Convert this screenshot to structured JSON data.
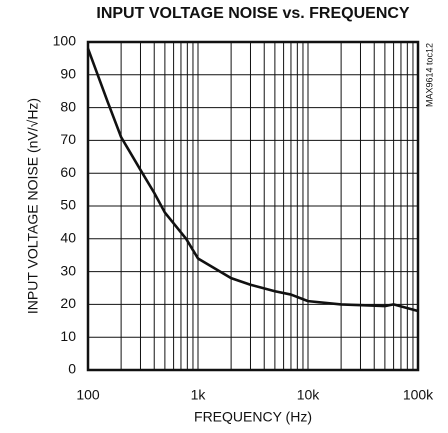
{
  "chart_data": {
    "type": "line",
    "title": "INPUT VOLTAGE NOISE vs. FREQUENCY",
    "x_label": "FREQUENCY (Hz)",
    "y_label": "INPUT VOLTAGE NOISE (nV/√Hz)",
    "annotation": "MAX9614 toc12",
    "x": [
      100,
      150,
      200,
      300,
      400,
      500,
      780,
      1000,
      2000,
      3000,
      5000,
      7000,
      10000,
      20000,
      50000,
      60000,
      100000
    ],
    "series": [
      {
        "name": "noise",
        "color": "#111111",
        "values": [
          98,
          82,
          71,
          61,
          54,
          48,
          40,
          34,
          28,
          26,
          24,
          23,
          21,
          20,
          19.5,
          20,
          18
        ]
      }
    ],
    "xscale": "log",
    "xlim": [
      100,
      100000
    ],
    "xticks": [
      100,
      {
        "value": 1000,
        "label": "1k"
      },
      {
        "value": 10000,
        "label": "10k"
      },
      {
        "value": 100000,
        "label": "100k"
      }
    ],
    "ylim": [
      0,
      100
    ],
    "yticks": [
      0,
      10,
      20,
      30,
      40,
      50,
      60,
      70,
      80,
      90,
      100
    ],
    "grid": true
  }
}
